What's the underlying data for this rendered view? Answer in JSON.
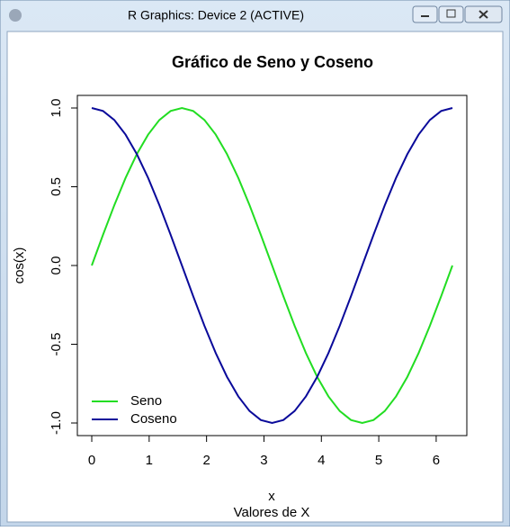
{
  "window": {
    "title": "R Graphics: Device 2 (ACTIVE)"
  },
  "chart_data": {
    "type": "line",
    "title": "Gráfico de Seno y Coseno",
    "x_label": "x",
    "subtitle": "Valores de X",
    "y_label": "cos(x)",
    "x": [
      0,
      0.196,
      0.393,
      0.589,
      0.785,
      0.982,
      1.178,
      1.374,
      1.571,
      1.767,
      1.963,
      2.16,
      2.356,
      2.553,
      2.749,
      2.945,
      3.142,
      3.338,
      3.534,
      3.731,
      3.927,
      4.123,
      4.32,
      4.516,
      4.712,
      4.909,
      5.105,
      5.301,
      5.498,
      5.694,
      5.89,
      6.087,
      6.283
    ],
    "series": [
      {
        "name": "Seno",
        "color": "#22dd22",
        "values": [
          0,
          0.195,
          0.383,
          0.556,
          0.707,
          0.831,
          0.924,
          0.981,
          1,
          0.981,
          0.924,
          0.831,
          0.707,
          0.556,
          0.383,
          0.195,
          0,
          -0.195,
          -0.383,
          -0.556,
          -0.707,
          -0.831,
          -0.924,
          -0.981,
          -1,
          -0.981,
          -0.924,
          -0.831,
          -0.707,
          -0.556,
          -0.383,
          -0.195,
          0
        ]
      },
      {
        "name": "Coseno",
        "color": "#0a0a9a",
        "values": [
          1,
          0.981,
          0.924,
          0.831,
          0.707,
          0.556,
          0.383,
          0.195,
          0,
          -0.195,
          -0.383,
          -0.556,
          -0.707,
          -0.831,
          -0.924,
          -0.981,
          -1,
          -0.981,
          -0.924,
          -0.831,
          -0.707,
          -0.556,
          -0.383,
          -0.195,
          0,
          0.195,
          0.383,
          0.556,
          0.707,
          0.831,
          0.924,
          0.981,
          1
        ]
      }
    ],
    "xlim": [
      -0.251,
      6.534
    ],
    "xticks": [
      0,
      1,
      2,
      3,
      4,
      5,
      6
    ],
    "ylim": [
      -1.08,
      1.08
    ],
    "yticks": [
      {
        "value": -1,
        "label": "-1.0"
      },
      {
        "value": -0.5,
        "label": "-0.5"
      },
      {
        "value": 0,
        "label": "0.0"
      },
      {
        "value": 0.5,
        "label": "0.5"
      },
      {
        "value": 1,
        "label": "1.0"
      }
    ],
    "legend": "bottom-left"
  }
}
